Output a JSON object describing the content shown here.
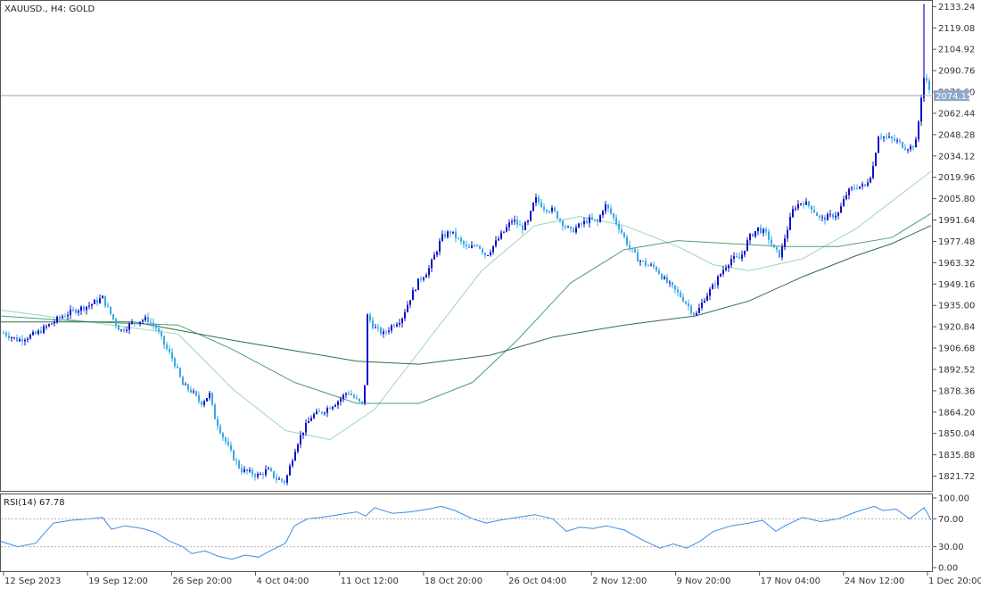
{
  "header": {
    "title": "XAUUSD., H4:  GOLD",
    "rsi_label": "RSI(14) 67.78"
  },
  "chart_data": {
    "type": "candlestick",
    "symbol": "XAUUSD.",
    "timeframe": "H4",
    "name": "GOLD",
    "current_price": 2074.15,
    "current_price_label": "2074.15",
    "ylim": [
      1812,
      2137
    ],
    "y_ticks": [
      "2133.24",
      "2119.08",
      "2104.92",
      "2090.76",
      "2076.60",
      "2062.44",
      "2048.28",
      "2034.12",
      "2019.96",
      "2005.80",
      "1991.64",
      "1977.48",
      "1963.32",
      "1949.16",
      "1935.00",
      "1920.84",
      "1906.68",
      "1892.52",
      "1878.36",
      "1864.20",
      "1850.04",
      "1835.88",
      "1821.72"
    ],
    "x_ticks": [
      "12 Sep 2023",
      "19 Sep 12:00",
      "26 Sep 20:00",
      "4 Oct 04:00",
      "11 Oct 12:00",
      "18 Oct 20:00",
      "26 Oct 04:00",
      "2 Nov 12:00",
      "9 Nov 20:00",
      "17 Nov 04:00",
      "24 Nov 12:00",
      "1 Dec 20:00"
    ],
    "price_path": [
      [
        0,
        1918
      ],
      [
        20,
        1912
      ],
      [
        40,
        1916
      ],
      [
        55,
        1922
      ],
      [
        70,
        1928
      ],
      [
        85,
        1932
      ],
      [
        100,
        1935
      ],
      [
        115,
        1940
      ],
      [
        125,
        1928
      ],
      [
        135,
        1918
      ],
      [
        150,
        1924
      ],
      [
        165,
        1926
      ],
      [
        175,
        1920
      ],
      [
        185,
        1908
      ],
      [
        195,
        1898
      ],
      [
        205,
        1882
      ],
      [
        215,
        1878
      ],
      [
        225,
        1870
      ],
      [
        235,
        1876
      ],
      [
        240,
        1862
      ],
      [
        250,
        1848
      ],
      [
        260,
        1836
      ],
      [
        270,
        1826
      ],
      [
        280,
        1824
      ],
      [
        290,
        1822
      ],
      [
        300,
        1826
      ],
      [
        310,
        1820
      ],
      [
        320,
        1818
      ],
      [
        328,
        1834
      ],
      [
        332,
        1842
      ],
      [
        340,
        1852
      ],
      [
        350,
        1862
      ],
      [
        360,
        1864
      ],
      [
        370,
        1868
      ],
      [
        380,
        1872
      ],
      [
        390,
        1878
      ],
      [
        400,
        1872
      ],
      [
        408,
        1868
      ],
      [
        412,
        1928
      ],
      [
        420,
        1920
      ],
      [
        430,
        1916
      ],
      [
        440,
        1922
      ],
      [
        450,
        1926
      ],
      [
        460,
        1940
      ],
      [
        470,
        1952
      ],
      [
        480,
        1958
      ],
      [
        490,
        1972
      ],
      [
        495,
        1980
      ],
      [
        505,
        1984
      ],
      [
        515,
        1978
      ],
      [
        525,
        1972
      ],
      [
        535,
        1976
      ],
      [
        545,
        1968
      ],
      [
        555,
        1976
      ],
      [
        565,
        1984
      ],
      [
        575,
        1992
      ],
      [
        585,
        1986
      ],
      [
        592,
        1990
      ],
      [
        600,
        2006
      ],
      [
        610,
        2000
      ],
      [
        620,
        1998
      ],
      [
        630,
        1990
      ],
      [
        640,
        1984
      ],
      [
        650,
        1988
      ],
      [
        660,
        1992
      ],
      [
        670,
        1990
      ],
      [
        678,
        2002
      ],
      [
        685,
        1996
      ],
      [
        695,
        1986
      ],
      [
        705,
        1974
      ],
      [
        715,
        1966
      ],
      [
        725,
        1962
      ],
      [
        735,
        1960
      ],
      [
        745,
        1952
      ],
      [
        755,
        1946
      ],
      [
        765,
        1940
      ],
      [
        775,
        1932
      ],
      [
        780,
        1928
      ],
      [
        790,
        1940
      ],
      [
        800,
        1948
      ],
      [
        810,
        1958
      ],
      [
        820,
        1966
      ],
      [
        830,
        1966
      ],
      [
        840,
        1980
      ],
      [
        850,
        1986
      ],
      [
        860,
        1982
      ],
      [
        868,
        1972
      ],
      [
        875,
        1968
      ],
      [
        880,
        1980
      ],
      [
        890,
        2000
      ],
      [
        900,
        2004
      ],
      [
        910,
        2000
      ],
      [
        920,
        1992
      ],
      [
        930,
        1994
      ],
      [
        940,
        1996
      ],
      [
        950,
        2010
      ],
      [
        960,
        2014
      ],
      [
        970,
        2014
      ],
      [
        978,
        2024
      ],
      [
        985,
        2048
      ],
      [
        995,
        2046
      ],
      [
        1005,
        2044
      ],
      [
        1015,
        2040
      ],
      [
        1022,
        2040
      ],
      [
        1028,
        2044
      ],
      [
        1032,
        2070
      ],
      [
        1036,
        2086
      ],
      [
        1040,
        2082
      ],
      [
        1044,
        2074
      ]
    ],
    "moving_averages": [
      {
        "color": "#9ad8b8",
        "path": [
          [
            0,
            1932
          ],
          [
            100,
            1924
          ],
          [
            200,
            1916
          ],
          [
            260,
            1880
          ],
          [
            320,
            1852
          ],
          [
            370,
            1846
          ],
          [
            420,
            1866
          ],
          [
            480,
            1912
          ],
          [
            540,
            1958
          ],
          [
            600,
            1988
          ],
          [
            650,
            1994
          ],
          [
            700,
            1988
          ],
          [
            760,
            1974
          ],
          [
            800,
            1962
          ],
          [
            840,
            1958
          ],
          [
            900,
            1966
          ],
          [
            960,
            1986
          ],
          [
            1000,
            2004
          ],
          [
            1044,
            2024
          ]
        ]
      },
      {
        "color": "#4fa06e",
        "path": [
          [
            0,
            1928
          ],
          [
            100,
            1924
          ],
          [
            200,
            1922
          ],
          [
            260,
            1906
          ],
          [
            330,
            1884
          ],
          [
            400,
            1870
          ],
          [
            470,
            1870
          ],
          [
            530,
            1884
          ],
          [
            580,
            1912
          ],
          [
            640,
            1950
          ],
          [
            700,
            1972
          ],
          [
            760,
            1978
          ],
          [
            820,
            1976
          ],
          [
            880,
            1974
          ],
          [
            940,
            1974
          ],
          [
            1000,
            1980
          ],
          [
            1044,
            1996
          ]
        ]
      },
      {
        "color": "#2f6e48",
        "path": [
          [
            0,
            1924
          ],
          [
            150,
            1924
          ],
          [
            260,
            1912
          ],
          [
            340,
            1904
          ],
          [
            400,
            1898
          ],
          [
            470,
            1896
          ],
          [
            550,
            1902
          ],
          [
            620,
            1914
          ],
          [
            700,
            1922
          ],
          [
            780,
            1928
          ],
          [
            840,
            1938
          ],
          [
            900,
            1954
          ],
          [
            960,
            1968
          ],
          [
            1000,
            1976
          ],
          [
            1044,
            1988
          ]
        ]
      }
    ],
    "rsi": {
      "period": 14,
      "value": 67.78,
      "ylim": [
        0,
        100
      ],
      "y_ticks": [
        "100.00",
        "70.00",
        "30.00",
        "0.00"
      ],
      "levels": [
        70,
        30
      ],
      "path": [
        [
          0,
          38
        ],
        [
          20,
          30
        ],
        [
          40,
          35
        ],
        [
          60,
          64
        ],
        [
          80,
          68
        ],
        [
          100,
          70
        ],
        [
          115,
          72
        ],
        [
          125,
          55
        ],
        [
          140,
          60
        ],
        [
          160,
          56
        ],
        [
          175,
          50
        ],
        [
          190,
          38
        ],
        [
          205,
          30
        ],
        [
          215,
          20
        ],
        [
          230,
          24
        ],
        [
          245,
          16
        ],
        [
          260,
          12
        ],
        [
          275,
          18
        ],
        [
          290,
          15
        ],
        [
          300,
          22
        ],
        [
          320,
          35
        ],
        [
          330,
          60
        ],
        [
          345,
          70
        ],
        [
          360,
          72
        ],
        [
          380,
          76
        ],
        [
          400,
          80
        ],
        [
          410,
          74
        ],
        [
          420,
          86
        ],
        [
          440,
          78
        ],
        [
          460,
          80
        ],
        [
          480,
          84
        ],
        [
          495,
          88
        ],
        [
          510,
          82
        ],
        [
          530,
          70
        ],
        [
          545,
          64
        ],
        [
          560,
          68
        ],
        [
          580,
          72
        ],
        [
          600,
          76
        ],
        [
          620,
          70
        ],
        [
          635,
          52
        ],
        [
          650,
          58
        ],
        [
          665,
          56
        ],
        [
          680,
          60
        ],
        [
          700,
          54
        ],
        [
          720,
          40
        ],
        [
          740,
          28
        ],
        [
          755,
          34
        ],
        [
          770,
          28
        ],
        [
          785,
          38
        ],
        [
          800,
          52
        ],
        [
          820,
          60
        ],
        [
          840,
          64
        ],
        [
          855,
          68
        ],
        [
          870,
          52
        ],
        [
          880,
          60
        ],
        [
          900,
          72
        ],
        [
          920,
          66
        ],
        [
          940,
          70
        ],
        [
          960,
          80
        ],
        [
          980,
          88
        ],
        [
          990,
          82
        ],
        [
          1005,
          84
        ],
        [
          1020,
          70
        ],
        [
          1030,
          80
        ],
        [
          1036,
          86
        ],
        [
          1040,
          78
        ],
        [
          1044,
          68
        ]
      ]
    }
  }
}
